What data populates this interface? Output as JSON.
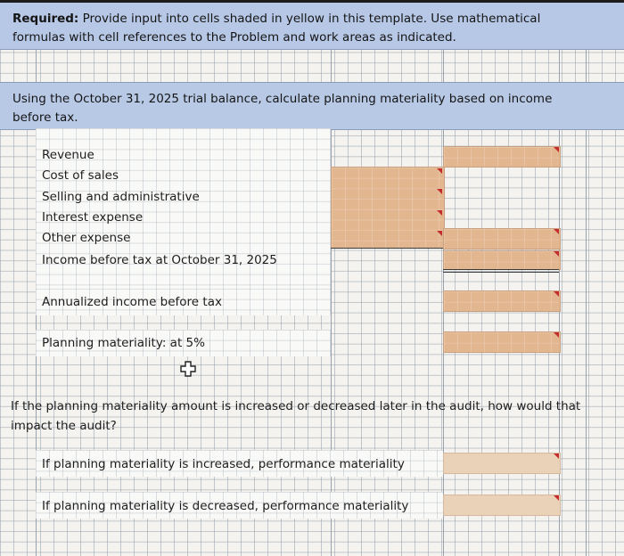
{
  "header": {
    "bold_prefix": "Required:",
    "text": " Provide input into cells shaded in yellow in this template. Use mathematical formulas with cell references to the Problem and work areas as indicated."
  },
  "question_band": {
    "text": "Using the October 31, 2025 trial balance, calculate planning materiality based on income before tax."
  },
  "income_rows": [
    "Revenue",
    "Cost of sales",
    "Selling and administrative",
    "Interest expense",
    "Other expense",
    "Income before tax at October 31, 2025"
  ],
  "annualized_label": "Annualized income before tax",
  "planning_label": "Planning materiality: at 5%",
  "impact_question": "If the planning materiality amount is increased or decreased later in the audit, how would that impact the audit?",
  "increase_label": "If planning materiality is increased, performance materiality",
  "decrease_label": "If planning materiality is decreased, performance materiality",
  "icons": {
    "cursor": "cross-cursor-icon",
    "comment": "comment-marker-icon"
  },
  "colors": {
    "band": "#b7c8e6",
    "input_cell": "#e2b68f",
    "comment_marker": "#c42d2d"
  }
}
